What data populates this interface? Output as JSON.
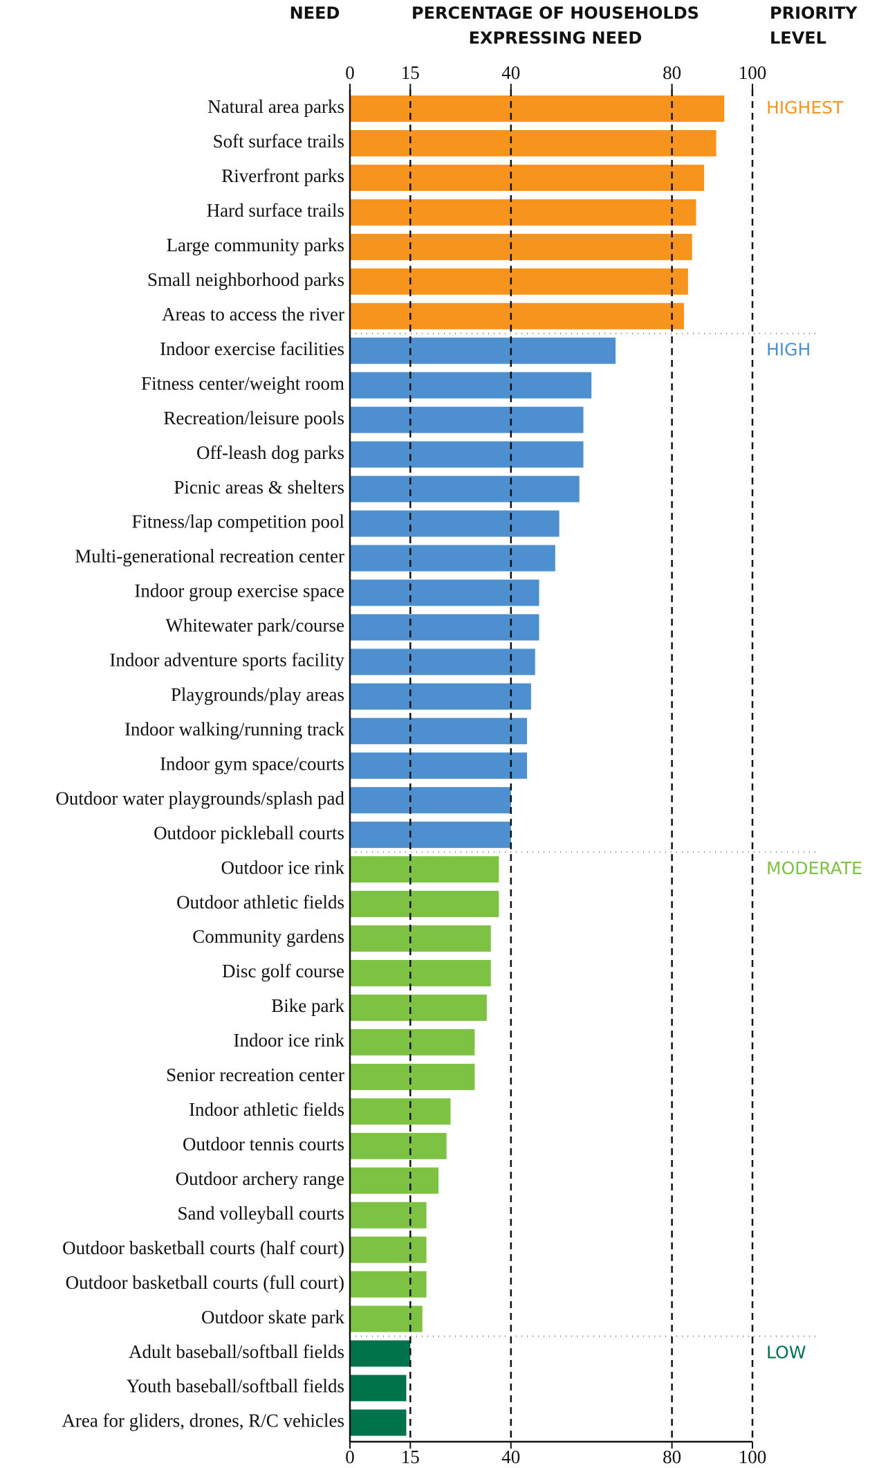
{
  "chart_data": {
    "type": "bar",
    "orientation": "horizontal",
    "header_need": "NEED",
    "header_value": [
      "PERCENTAGE OF HOUSEHOLDS",
      "EXPRESSING NEED"
    ],
    "header_priority": [
      "PRIORITY",
      "LEVEL"
    ],
    "xlim": [
      0,
      100
    ],
    "xticks": [
      0,
      15,
      40,
      80,
      100
    ],
    "series": [
      {
        "name": "HIGHEST",
        "color": "#f7941d",
        "categories": [
          "Natural area parks",
          "Soft surface trails",
          "Riverfront parks",
          "Hard surface trails",
          "Large community parks",
          "Small neighborhood parks",
          "Areas to access the river"
        ],
        "values": [
          93,
          91,
          88,
          86,
          85,
          84,
          83
        ]
      },
      {
        "name": "HIGH",
        "color": "#4e8fd0",
        "categories": [
          "Indoor exercise facilities",
          "Fitness center/weight room",
          "Recreation/leisure pools",
          "Off-leash dog parks",
          "Picnic areas & shelters",
          "Fitness/lap competition pool",
          "Multi-generational recreation center",
          "Indoor group exercise space",
          "Whitewater park/course",
          "Indoor adventure sports facility",
          "Playgrounds/play areas",
          "Indoor walking/running track",
          "Indoor gym space/courts",
          "Outdoor water playgrounds/splash pad",
          "Outdoor pickleball courts"
        ],
        "values": [
          66,
          60,
          58,
          58,
          57,
          52,
          51,
          47,
          47,
          46,
          45,
          44,
          44,
          40,
          40
        ]
      },
      {
        "name": "MODERATE",
        "color": "#7dc242",
        "categories": [
          "Outdoor ice rink",
          "Outdoor athletic fields",
          "Community gardens",
          "Disc golf course",
          "Bike park",
          "Indoor ice rink",
          "Senior recreation center",
          "Indoor athletic fields",
          "Outdoor tennis courts",
          "Outdoor archery range",
          "Sand volleyball courts",
          "Outdoor basketball courts (half court)",
          "Outdoor basketball courts (full court)",
          "Outdoor skate park"
        ],
        "values": [
          37,
          37,
          35,
          35,
          34,
          31,
          31,
          25,
          24,
          22,
          19,
          19,
          19,
          18
        ]
      },
      {
        "name": "LOW",
        "color": "#00734a",
        "categories": [
          "Adult baseball/softball fields",
          "Youth baseball/softball fields",
          "Area for gliders, drones, R/C vehicles"
        ],
        "values": [
          15,
          14,
          14
        ]
      }
    ]
  }
}
